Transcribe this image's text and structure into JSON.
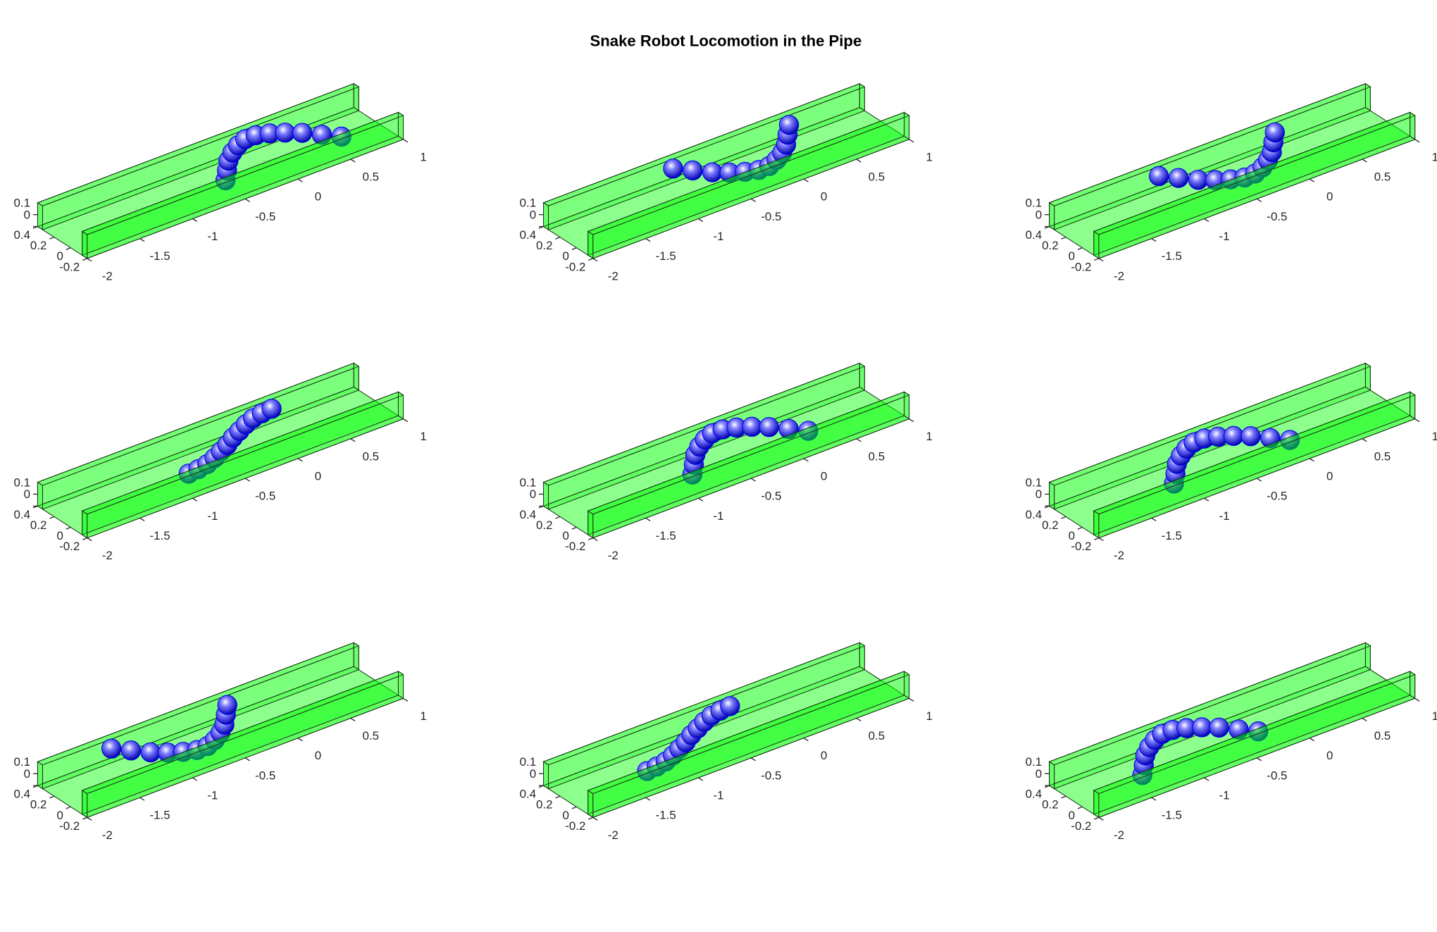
{
  "title": "Snake Robot Locomotion in the Pipe",
  "chart_data": [
    {
      "type": "scatter3d",
      "xlim": [
        -2,
        1
      ],
      "ylim": [
        -0.2,
        0.4
      ],
      "zlim": [
        0,
        0.2
      ],
      "xticks": [
        -2,
        -1.5,
        -1,
        -0.5,
        0,
        0.5,
        1
      ],
      "yticks": [
        -0.2,
        0,
        0.2,
        0.4
      ],
      "zticks": [
        0,
        0.1
      ],
      "pipe_color": "#00ff00",
      "series": [
        {
          "color": "#0000ee",
          "x": [
            -0.53,
            -0.43,
            -0.33,
            -0.23,
            -0.13,
            -0.03,
            0.07,
            0.17,
            0.27,
            0.37,
            0.47,
            0.57
          ],
          "y": [
            0,
            0.11,
            0.22,
            0.3,
            0.36,
            0.4,
            0.4,
            0.36,
            0.3,
            0.22,
            0.11,
            0
          ]
        }
      ]
    },
    {
      "type": "scatter3d",
      "xlim": [
        -2,
        1
      ],
      "ylim": [
        -0.2,
        0.4
      ],
      "zlim": [
        0,
        0.2
      ],
      "xticks": [
        -2,
        -1.5,
        -1,
        -0.5,
        0,
        0.5,
        1
      ],
      "yticks": [
        -0.2,
        0,
        0.2,
        0.4
      ],
      "zticks": [
        0,
        0.1
      ],
      "pipe_color": "#00ff00",
      "series": [
        {
          "color": "#0000ee",
          "x": [
            -0.77,
            -0.67,
            -0.57,
            -0.47,
            -0.37,
            -0.27,
            -0.17,
            -0.07,
            0.03,
            0.13,
            0.23,
            0.33
          ],
          "y": [
            0.4,
            0.29,
            0.18,
            0.1,
            0.04,
            0,
            0,
            0.04,
            0.1,
            0.18,
            0.29,
            0.4
          ]
        }
      ]
    },
    {
      "type": "scatter3d",
      "xlim": [
        -2,
        1
      ],
      "ylim": [
        -0.2,
        0.4
      ],
      "zlim": [
        0,
        0.2
      ],
      "xticks": [
        -2,
        -1.5,
        -1,
        -0.5,
        0,
        0.5,
        1
      ],
      "yticks": [
        -0.2,
        0,
        0.2,
        0.4
      ],
      "zticks": [
        0,
        0.1
      ],
      "pipe_color": "#00ff00",
      "series": [
        {
          "color": "#0000ee",
          "x": [
            -0.96,
            -0.86,
            -0.76,
            -0.66,
            -0.56,
            -0.46,
            -0.36,
            -0.26,
            -0.16,
            -0.06,
            0.04,
            0.14
          ],
          "y": [
            0.4,
            0.29,
            0.18,
            0.1,
            0.04,
            0,
            0,
            0.04,
            0.1,
            0.18,
            0.29,
            0.4
          ]
        }
      ]
    },
    {
      "type": "scatter3d",
      "xlim": [
        -2,
        1
      ],
      "ylim": [
        -0.2,
        0.4
      ],
      "zlim": [
        0,
        0.2
      ],
      "xticks": [
        -2,
        -1.5,
        -1,
        -0.5,
        0,
        0.5,
        1
      ],
      "yticks": [
        -0.2,
        0,
        0.2,
        0.4
      ],
      "zticks": [
        0,
        0.1
      ],
      "pipe_color": "#00ff00",
      "series": [
        {
          "color": "#0000ee",
          "x": [
            -0.88,
            -0.78,
            -0.68,
            -0.58,
            -0.48,
            -0.38,
            -0.28,
            -0.18,
            -0.08,
            0.02,
            0.12,
            0.22
          ],
          "y": [
            0,
            0.01,
            0.03,
            0.07,
            0.12,
            0.17,
            0.23,
            0.28,
            0.33,
            0.37,
            0.39,
            0.4
          ]
        }
      ]
    },
    {
      "type": "scatter3d",
      "xlim": [
        -2,
        1
      ],
      "ylim": [
        -0.2,
        0.4
      ],
      "zlim": [
        0,
        0.2
      ],
      "xticks": [
        -2,
        -1.5,
        -1,
        -0.5,
        0,
        0.5,
        1
      ],
      "yticks": [
        -0.2,
        0,
        0.2,
        0.4
      ],
      "zticks": [
        0,
        0.1
      ],
      "pipe_color": "#00ff00",
      "series": [
        {
          "color": "#0000ee",
          "x": [
            -0.9,
            -0.8,
            -0.7,
            -0.6,
            -0.5,
            -0.4,
            -0.3,
            -0.2,
            -0.1,
            0,
            0.1,
            0.2
          ],
          "y": [
            0,
            0.11,
            0.22,
            0.3,
            0.36,
            0.4,
            0.4,
            0.36,
            0.3,
            0.22,
            0.11,
            0
          ]
        }
      ]
    },
    {
      "type": "scatter3d",
      "xlim": [
        -2,
        1
      ],
      "ylim": [
        -0.2,
        0.4
      ],
      "zlim": [
        0,
        0.2
      ],
      "xticks": [
        -2,
        -1.5,
        -1,
        -0.5,
        0,
        0.5,
        1
      ],
      "yticks": [
        -0.2,
        0,
        0.2,
        0.4
      ],
      "zticks": [
        0,
        0.1
      ],
      "pipe_color": "#00ff00",
      "series": [
        {
          "color": "#0000ee",
          "x": [
            -1.13,
            -1.03,
            -0.93,
            -0.83,
            -0.73,
            -0.63,
            -0.53,
            -0.43,
            -0.33,
            -0.23,
            -0.13,
            -0.03
          ],
          "y": [
            0,
            0.11,
            0.22,
            0.3,
            0.36,
            0.4,
            0.4,
            0.36,
            0.3,
            0.22,
            0.11,
            0
          ]
        }
      ]
    },
    {
      "type": "scatter3d",
      "xlim": [
        -2,
        1
      ],
      "ylim": [
        -0.2,
        0.4
      ],
      "zlim": [
        0,
        0.2
      ],
      "xticks": [
        -2,
        -1.5,
        -1,
        -0.5,
        0,
        0.5,
        1
      ],
      "yticks": [
        -0.2,
        0,
        0.2,
        0.4
      ],
      "zticks": [
        0,
        0.1
      ],
      "pipe_color": "#00ff00",
      "series": [
        {
          "color": "#0000ee",
          "x": [
            -1.3,
            -1.2,
            -1.1,
            -1,
            -0.9,
            -0.8,
            -0.7,
            -0.6,
            -0.5,
            -0.4,
            -0.3,
            -0.2
          ],
          "y": [
            0.4,
            0.29,
            0.18,
            0.1,
            0.04,
            0,
            0,
            0.04,
            0.1,
            0.18,
            0.29,
            0.4
          ]
        }
      ]
    },
    {
      "type": "scatter3d",
      "xlim": [
        -2,
        1
      ],
      "ylim": [
        -0.2,
        0.4
      ],
      "zlim": [
        0,
        0.2
      ],
      "xticks": [
        -2,
        -1.5,
        -1,
        -0.5,
        0,
        0.5,
        1
      ],
      "yticks": [
        -0.2,
        0,
        0.2,
        0.4
      ],
      "zticks": [
        0,
        0.1
      ],
      "pipe_color": "#00ff00",
      "series": [
        {
          "color": "#0000ee",
          "x": [
            -1.33,
            -1.23,
            -1.13,
            -1.03,
            -0.93,
            -0.83,
            -0.73,
            -0.63,
            -0.53,
            -0.43,
            -0.33,
            -0.23
          ],
          "y": [
            0,
            0.01,
            0.03,
            0.07,
            0.12,
            0.17,
            0.23,
            0.28,
            0.33,
            0.37,
            0.39,
            0.4
          ]
        }
      ]
    },
    {
      "type": "scatter3d",
      "xlim": [
        -2,
        1
      ],
      "ylim": [
        -0.2,
        0.4
      ],
      "zlim": [
        0,
        0.2
      ],
      "xticks": [
        -2,
        -1.5,
        -1,
        -0.5,
        0,
        0.5,
        1
      ],
      "yticks": [
        -0.2,
        0,
        0.2,
        0.4
      ],
      "zticks": [
        0,
        0.1
      ],
      "pipe_color": "#00ff00",
      "series": [
        {
          "color": "#0000ee",
          "x": [
            -1.43,
            -1.33,
            -1.23,
            -1.13,
            -1.03,
            -0.93,
            -0.83,
            -0.73,
            -0.63,
            -0.53,
            -0.43,
            -0.33
          ],
          "y": [
            0,
            0.11,
            0.22,
            0.3,
            0.36,
            0.4,
            0.4,
            0.36,
            0.3,
            0.22,
            0.11,
            0
          ]
        }
      ]
    }
  ]
}
